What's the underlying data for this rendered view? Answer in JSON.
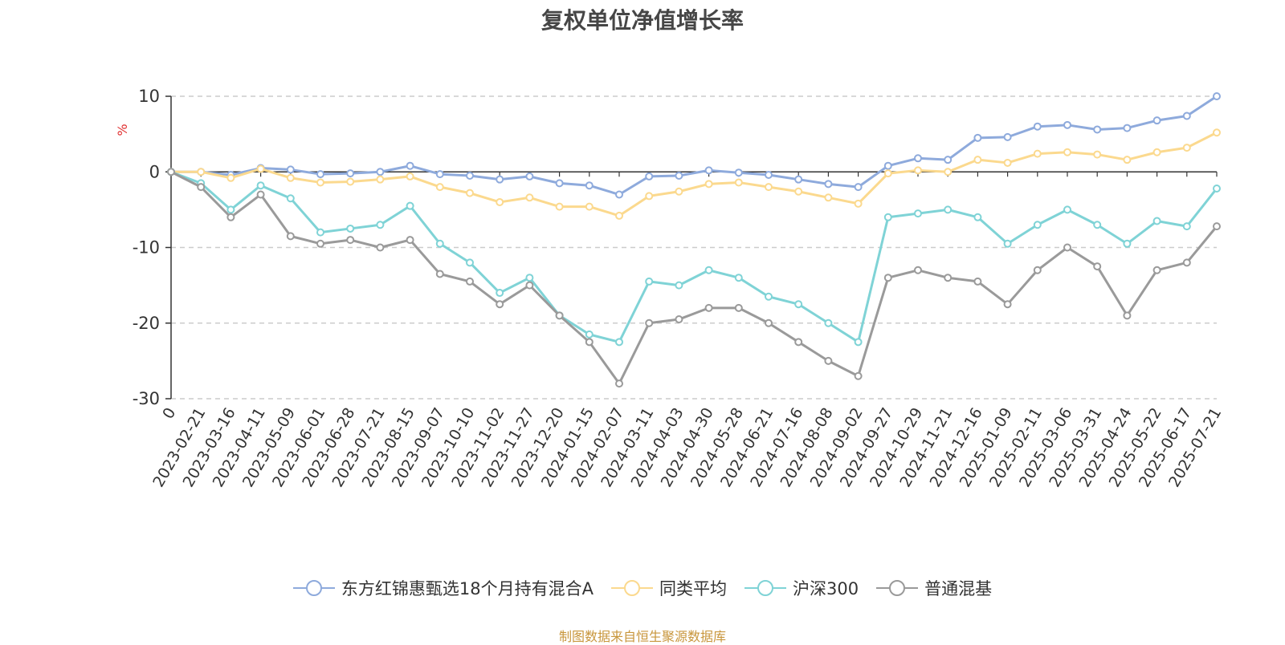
{
  "title": "复权单位净值增长率",
  "source_note": "制图数据来自恒生聚源数据库",
  "colors": {
    "fund": "#8eaadc",
    "peer_avg": "#fbd98e",
    "hs300": "#7fd3d6",
    "mixed": "#9a9a9a"
  },
  "chart_data": {
    "type": "line",
    "title": "复权单位净值增长率",
    "ylabel": "%",
    "ylim": [
      -30,
      10
    ],
    "yticks": [
      10,
      0,
      -10,
      -20,
      -30
    ],
    "grid": true,
    "legend_position": "bottom",
    "x_tick_labels": [
      "0",
      "2023-02-21",
      "2023-03-16",
      "2023-04-11",
      "2023-05-09",
      "2023-06-01",
      "2023-06-28",
      "2023-07-21",
      "2023-08-15",
      "2023-09-07",
      "2023-10-10",
      "2023-11-02",
      "2023-11-27",
      "2023-12-20",
      "2024-01-15",
      "2024-02-07",
      "2024-03-11",
      "2024-04-03",
      "2024-04-30",
      "2024-05-28",
      "2024-06-21",
      "2024-07-16",
      "2024-08-08",
      "2024-09-02",
      "2024-09-27",
      "2024-10-29",
      "2024-11-21",
      "2024-12-16",
      "2025-01-09",
      "2025-02-11",
      "2025-03-06",
      "2025-03-31",
      "2025-04-24",
      "2025-05-22",
      "2025-06-17",
      "2025-07-21"
    ],
    "series": [
      {
        "name": "东方红锦惠甄选18个月持有混合A",
        "color_key": "fund",
        "values": [
          0,
          0,
          -0.4,
          0.5,
          0.3,
          -0.3,
          -0.2,
          0,
          0.8,
          -0.3,
          -0.5,
          -1.0,
          -0.6,
          -1.5,
          -1.8,
          -3.0,
          -0.6,
          -0.5,
          0.2,
          -0.1,
          -0.4,
          -1.0,
          -1.6,
          -2.0,
          0.8,
          1.8,
          1.6,
          4.5,
          4.6,
          6.0,
          6.2,
          5.6,
          5.8,
          6.8,
          7.4,
          10.0
        ]
      },
      {
        "name": "同类平均",
        "color_key": "peer_avg",
        "values": [
          0,
          0,
          -0.8,
          0.4,
          -0.8,
          -1.4,
          -1.3,
          -1.0,
          -0.6,
          -2.0,
          -2.8,
          -4.0,
          -3.4,
          -4.6,
          -4.6,
          -5.8,
          -3.2,
          -2.6,
          -1.6,
          -1.4,
          -2.0,
          -2.6,
          -3.4,
          -4.2,
          -0.2,
          0.2,
          0.0,
          1.6,
          1.2,
          2.4,
          2.6,
          2.3,
          1.6,
          2.6,
          3.2,
          5.2
        ]
      },
      {
        "name": "沪深300",
        "color_key": "hs300",
        "values": [
          0,
          -1.5,
          -5.0,
          -1.8,
          -3.5,
          -8.0,
          -7.5,
          -7.0,
          -4.5,
          -9.5,
          -12.0,
          -16.0,
          -14.0,
          -19.0,
          -21.5,
          -22.5,
          -14.5,
          -15.0,
          -13.0,
          -14.0,
          -16.5,
          -17.5,
          -20.0,
          -22.5,
          -6.0,
          -5.5,
          -5.0,
          -6.0,
          -9.5,
          -7.0,
          -5.0,
          -7.0,
          -9.5,
          -6.5,
          -7.2,
          -2.2
        ]
      },
      {
        "name": "普通混基",
        "color_key": "mixed",
        "values": [
          0,
          -2.0,
          -6.0,
          -3.0,
          -8.5,
          -9.5,
          -9.0,
          -10.0,
          -9.0,
          -13.5,
          -14.5,
          -17.5,
          -15.0,
          -19.0,
          -22.5,
          -28.0,
          -20.0,
          -19.5,
          -18.0,
          -18.0,
          -20.0,
          -22.5,
          -25.0,
          -27.0,
          -14.0,
          -13.0,
          -14.0,
          -14.5,
          -17.5,
          -13.0,
          -10.0,
          -12.5,
          -19.0,
          -13.0,
          -12.0,
          -7.2
        ]
      }
    ]
  }
}
